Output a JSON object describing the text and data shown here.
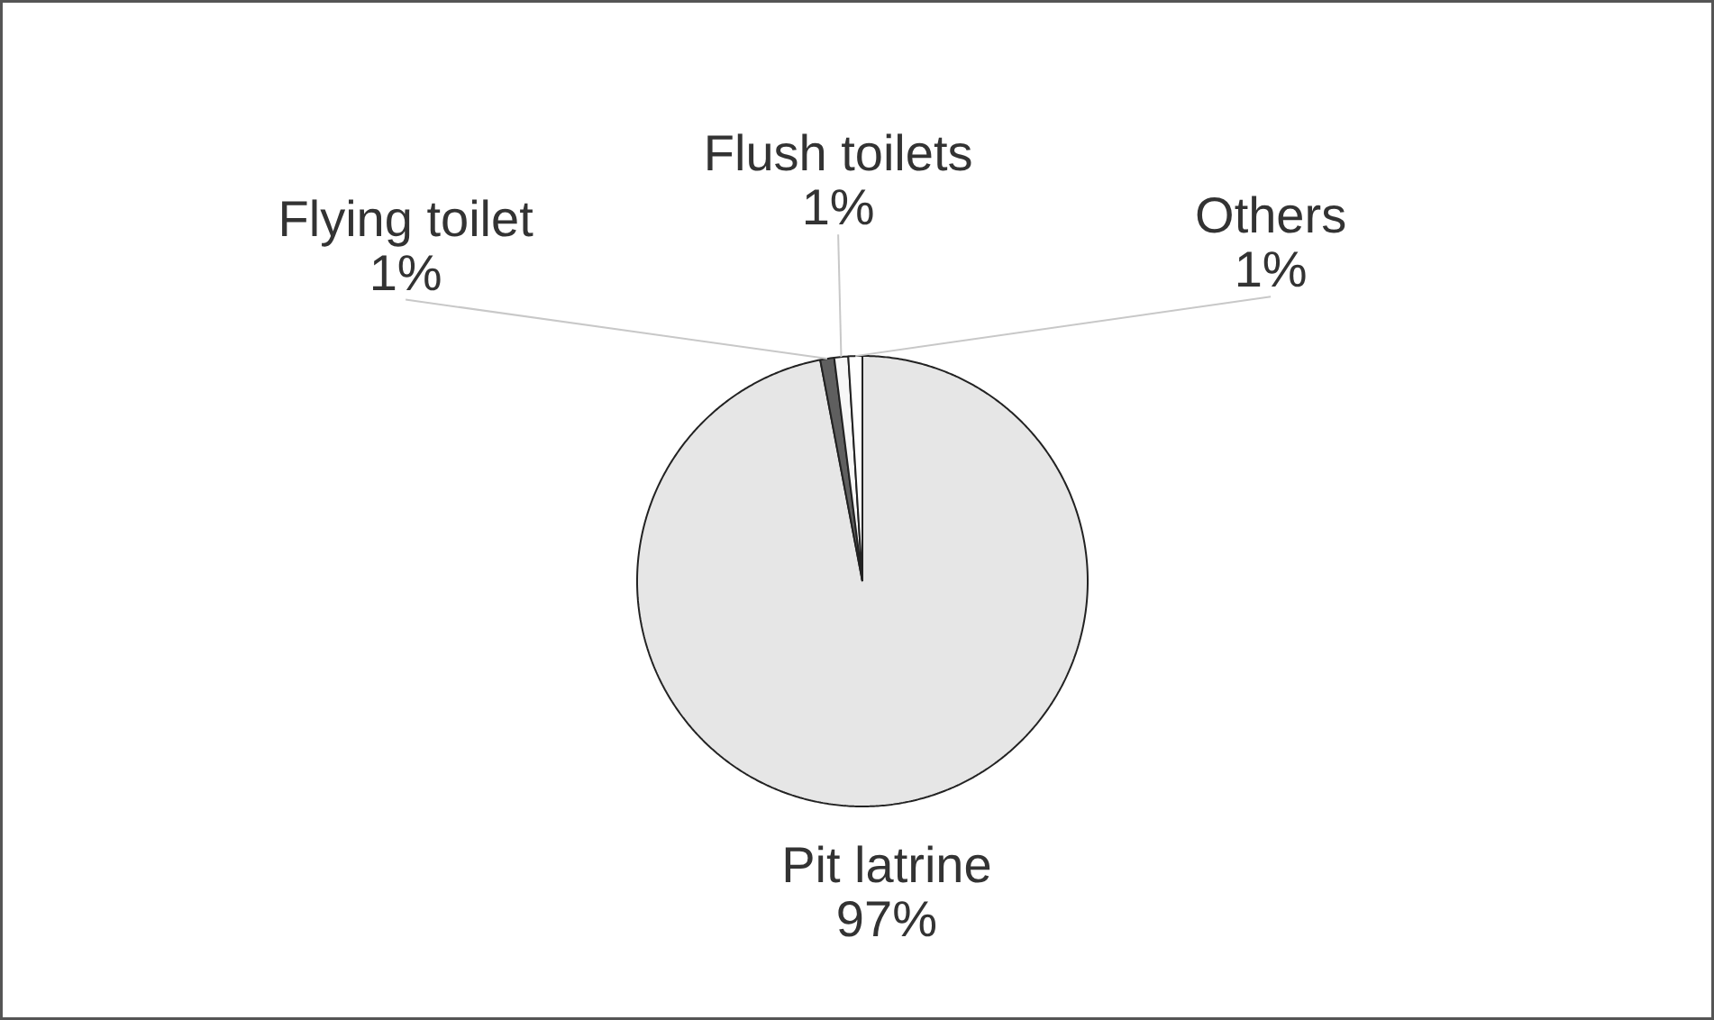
{
  "chart_data": {
    "type": "pie",
    "categories": [
      "Pit latrine",
      "Flying toilet",
      "Flush toilets",
      "Others"
    ],
    "values": [
      97,
      1,
      1,
      1
    ],
    "colors": [
      "#e6e6e6",
      "#5f5f5f",
      "#f7f7f7",
      "#ffffff"
    ],
    "value_labels": [
      "97%",
      "1%",
      "1%",
      "1%"
    ]
  }
}
